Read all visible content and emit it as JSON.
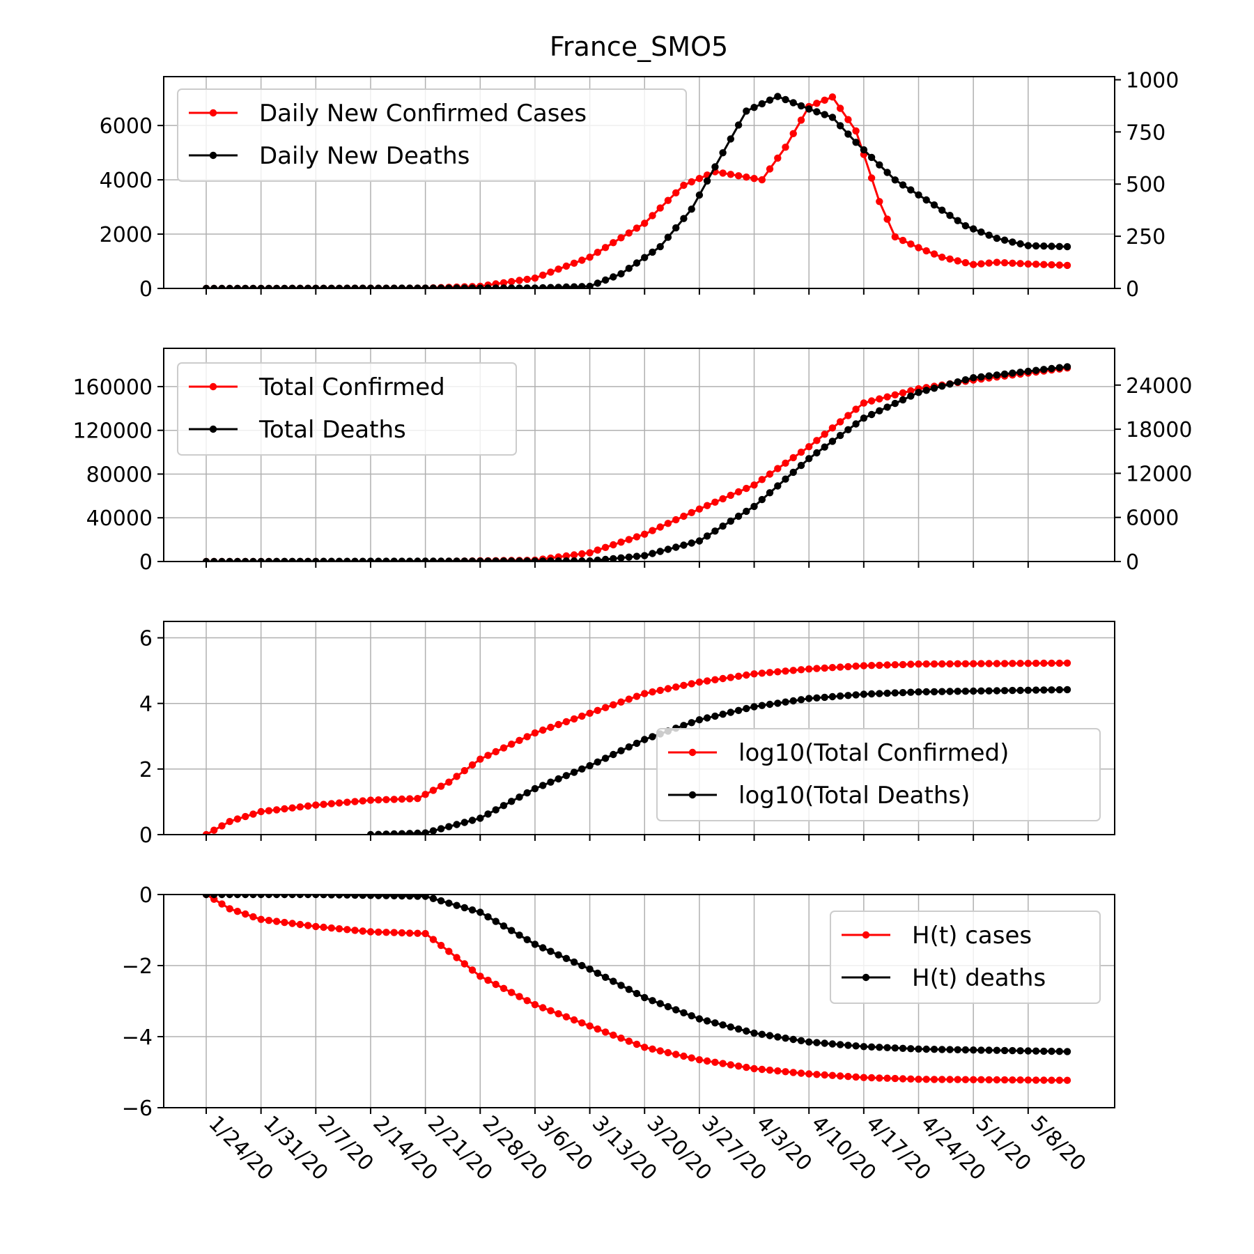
{
  "figure": {
    "title": "France_SMO5",
    "x_tick_labels": [
      "1/24/20",
      "1/31/20",
      "2/7/20",
      "2/14/20",
      "2/21/20",
      "2/28/20",
      "3/6/20",
      "3/13/20",
      "3/20/20",
      "3/27/20",
      "4/3/20",
      "4/10/20",
      "4/17/20",
      "4/24/20",
      "5/1/20",
      "5/8/20"
    ]
  },
  "colors": {
    "cases": "#ff0000",
    "deaths": "#000000",
    "grid": "#b0b0b0"
  },
  "chart_data": [
    {
      "type": "line",
      "x_start": "1/24/20",
      "x_end": "5/13/20",
      "grid": true,
      "legend_position": "top-left",
      "ylim": [
        0,
        7800
      ],
      "yticks": [
        0,
        2000,
        4000,
        6000
      ],
      "y2lim": [
        0,
        1015
      ],
      "y2ticks": [
        0,
        250,
        500,
        750,
        1000
      ],
      "series": [
        {
          "name": "Daily New Confirmed Cases",
          "color": "#ff0000",
          "axis": "left",
          "points": [
            [
              "1/24/20",
              0
            ],
            [
              "2/21/20",
              10
            ],
            [
              "2/28/20",
              80
            ],
            [
              "3/6/20",
              380
            ],
            [
              "3/13/20",
              1150
            ],
            [
              "3/20/20",
              2400
            ],
            [
              "3/25/20",
              3800
            ],
            [
              "3/29/20",
              4300
            ],
            [
              "4/1/20",
              4150
            ],
            [
              "4/4/20",
              4000
            ],
            [
              "4/7/20",
              5200
            ],
            [
              "4/10/20",
              6700
            ],
            [
              "4/13/20",
              7050
            ],
            [
              "4/16/20",
              5800
            ],
            [
              "4/19/20",
              3200
            ],
            [
              "4/21/20",
              1900
            ],
            [
              "4/24/20",
              1500
            ],
            [
              "4/27/20",
              1150
            ],
            [
              "5/1/20",
              880
            ],
            [
              "5/4/20",
              960
            ],
            [
              "5/8/20",
              900
            ],
            [
              "5/13/20",
              850
            ]
          ]
        },
        {
          "name": "Daily New Deaths",
          "color": "#000000",
          "axis": "right",
          "points": [
            [
              "1/24/20",
              0
            ],
            [
              "3/6/20",
              2
            ],
            [
              "3/13/20",
              10
            ],
            [
              "3/17/20",
              70
            ],
            [
              "3/22/20",
              200
            ],
            [
              "3/26/20",
              380
            ],
            [
              "3/30/20",
              650
            ],
            [
              "4/2/20",
              850
            ],
            [
              "4/6/20",
              920
            ],
            [
              "4/10/20",
              860
            ],
            [
              "4/13/20",
              820
            ],
            [
              "4/16/20",
              700
            ],
            [
              "4/21/20",
              520
            ],
            [
              "4/26/20",
              400
            ],
            [
              "4/30/20",
              300
            ],
            [
              "5/4/20",
              240
            ],
            [
              "5/8/20",
              205
            ],
            [
              "5/13/20",
              200
            ]
          ]
        }
      ]
    },
    {
      "type": "line",
      "x_start": "1/24/20",
      "x_end": "5/13/20",
      "grid": true,
      "legend_position": "top-left",
      "ylim": [
        0,
        195000
      ],
      "yticks": [
        0,
        40000,
        80000,
        120000,
        160000
      ],
      "y2lim": [
        0,
        29000
      ],
      "y2ticks": [
        0,
        6000,
        12000,
        18000,
        24000
      ],
      "series": [
        {
          "name": "Total Confirmed",
          "color": "#ff0000",
          "axis": "left",
          "points": [
            [
              "1/24/20",
              3
            ],
            [
              "2/21/20",
              12
            ],
            [
              "3/6/20",
              1200
            ],
            [
              "3/13/20",
              8000
            ],
            [
              "3/20/20",
              25000
            ],
            [
              "3/27/20",
              48000
            ],
            [
              "4/3/20",
              70000
            ],
            [
              "4/10/20",
              105000
            ],
            [
              "4/17/20",
              145000
            ],
            [
              "4/24/20",
              158000
            ],
            [
              "5/1/20",
              166000
            ],
            [
              "5/13/20",
              177000
            ]
          ]
        },
        {
          "name": "Total Deaths",
          "color": "#000000",
          "axis": "right",
          "points": [
            [
              "1/24/20",
              0
            ],
            [
              "3/13/20",
              80
            ],
            [
              "3/20/20",
              800
            ],
            [
              "3/27/20",
              2800
            ],
            [
              "4/3/20",
              7500
            ],
            [
              "4/10/20",
              14000
            ],
            [
              "4/17/20",
              19500
            ],
            [
              "4/24/20",
              23000
            ],
            [
              "5/1/20",
              25000
            ],
            [
              "5/13/20",
              26500
            ]
          ]
        }
      ]
    },
    {
      "type": "line",
      "x_start": "1/24/20",
      "x_end": "5/13/20",
      "grid": true,
      "legend_position": "center-right",
      "ylim": [
        0,
        6.5
      ],
      "yticks": [
        0,
        2,
        4,
        6
      ],
      "series": [
        {
          "name": "log10(Total Confirmed)",
          "color": "#ff0000",
          "points": [
            [
              "1/24/20",
              0
            ],
            [
              "1/27/20",
              0.4
            ],
            [
              "1/31/20",
              0.7
            ],
            [
              "2/7/20",
              0.9
            ],
            [
              "2/14/20",
              1.05
            ],
            [
              "2/20/20",
              1.1
            ],
            [
              "2/24/20",
              1.6
            ],
            [
              "2/28/20",
              2.3
            ],
            [
              "3/6/20",
              3.1
            ],
            [
              "3/13/20",
              3.7
            ],
            [
              "3/20/20",
              4.3
            ],
            [
              "3/27/20",
              4.65
            ],
            [
              "4/3/20",
              4.9
            ],
            [
              "4/10/20",
              5.05
            ],
            [
              "4/17/20",
              5.15
            ],
            [
              "4/24/20",
              5.2
            ],
            [
              "5/13/20",
              5.23
            ]
          ]
        },
        {
          "name": "log10(Total Deaths)",
          "color": "#000000",
          "points": [
            [
              "2/14/20",
              0
            ],
            [
              "2/21/20",
              0.05
            ],
            [
              "2/28/20",
              0.5
            ],
            [
              "3/6/20",
              1.4
            ],
            [
              "3/13/20",
              2.1
            ],
            [
              "3/20/20",
              2.9
            ],
            [
              "3/27/20",
              3.5
            ],
            [
              "4/3/20",
              3.9
            ],
            [
              "4/10/20",
              4.15
            ],
            [
              "4/17/20",
              4.28
            ],
            [
              "4/24/20",
              4.35
            ],
            [
              "5/13/20",
              4.42
            ]
          ]
        }
      ]
    },
    {
      "type": "line",
      "x_start": "1/24/20",
      "x_end": "5/13/20",
      "grid": true,
      "legend_position": "top-right",
      "ylim": [
        -6,
        0
      ],
      "yticks": [
        -6,
        -4,
        -2,
        0
      ],
      "series": [
        {
          "name": "H(t) cases",
          "color": "#ff0000",
          "points": [
            [
              "1/24/20",
              0
            ],
            [
              "1/27/20",
              -0.4
            ],
            [
              "1/31/20",
              -0.7
            ],
            [
              "2/7/20",
              -0.9
            ],
            [
              "2/14/20",
              -1.05
            ],
            [
              "2/21/20",
              -1.1
            ],
            [
              "2/24/20",
              -1.6
            ],
            [
              "2/28/20",
              -2.3
            ],
            [
              "3/6/20",
              -3.1
            ],
            [
              "3/13/20",
              -3.7
            ],
            [
              "3/20/20",
              -4.3
            ],
            [
              "3/27/20",
              -4.65
            ],
            [
              "4/3/20",
              -4.9
            ],
            [
              "4/10/20",
              -5.05
            ],
            [
              "4/17/20",
              -5.15
            ],
            [
              "4/24/20",
              -5.2
            ],
            [
              "5/13/20",
              -5.23
            ]
          ]
        },
        {
          "name": "H(t) deaths",
          "color": "#000000",
          "points": [
            [
              "1/24/20",
              0
            ],
            [
              "2/7/20",
              0
            ],
            [
              "2/21/20",
              -0.05
            ],
            [
              "2/28/20",
              -0.5
            ],
            [
              "3/6/20",
              -1.4
            ],
            [
              "3/13/20",
              -2.1
            ],
            [
              "3/20/20",
              -2.9
            ],
            [
              "3/27/20",
              -3.5
            ],
            [
              "4/3/20",
              -3.9
            ],
            [
              "4/10/20",
              -4.15
            ],
            [
              "4/17/20",
              -4.28
            ],
            [
              "4/24/20",
              -4.35
            ],
            [
              "5/13/20",
              -4.42
            ]
          ]
        }
      ]
    }
  ]
}
